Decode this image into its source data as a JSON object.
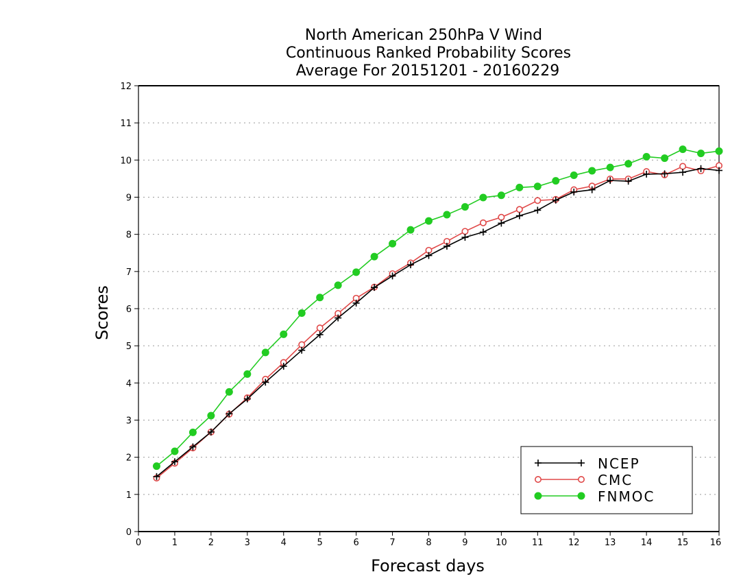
{
  "chart_data": {
    "type": "line",
    "title": [
      "North American 250hPa V Wind",
      "Continuous Ranked Probability Scores",
      "Average For 20151201 - 20160229"
    ],
    "xlabel": "Forecast days",
    "ylabel": "Scores",
    "xlim": [
      0,
      16
    ],
    "ylim": [
      0,
      12
    ],
    "xticks": [
      0,
      1,
      2,
      3,
      4,
      5,
      6,
      7,
      8,
      9,
      10,
      11,
      12,
      13,
      14,
      15,
      16
    ],
    "yticks": [
      0,
      1,
      2,
      3,
      4,
      5,
      6,
      7,
      8,
      9,
      10,
      11,
      12
    ],
    "grid": "horizontal dotted",
    "legend_position": "bottom-right",
    "x": [
      0.5,
      1.0,
      1.5,
      2.0,
      2.5,
      3.0,
      3.5,
      4.0,
      4.5,
      5.0,
      5.5,
      6.0,
      6.5,
      7.0,
      7.5,
      8.0,
      8.5,
      9.0,
      9.5,
      10.0,
      10.5,
      11.0,
      11.5,
      12.0,
      12.5,
      13.0,
      13.5,
      14.0,
      14.5,
      15.0,
      15.5,
      16.0
    ],
    "series": [
      {
        "name": "NCEP",
        "color": "#000000",
        "marker": "plus",
        "values": [
          1.48,
          1.88,
          2.28,
          2.68,
          3.17,
          3.57,
          4.02,
          4.45,
          4.88,
          5.3,
          5.75,
          6.15,
          6.57,
          6.88,
          7.18,
          7.43,
          7.68,
          7.92,
          8.06,
          8.3,
          8.5,
          8.65,
          8.92,
          9.14,
          9.2,
          9.45,
          9.43,
          9.62,
          9.63,
          9.67,
          9.77,
          9.72
        ]
      },
      {
        "name": "CMC",
        "color": "#e04848",
        "marker": "open-circle",
        "values": [
          1.44,
          1.84,
          2.25,
          2.68,
          3.16,
          3.6,
          4.1,
          4.55,
          5.03,
          5.48,
          5.87,
          6.28,
          6.58,
          6.94,
          7.23,
          7.57,
          7.81,
          8.08,
          8.31,
          8.46,
          8.67,
          8.91,
          8.94,
          9.2,
          9.3,
          9.49,
          9.49,
          9.69,
          9.6,
          9.83,
          9.71,
          9.85
        ]
      },
      {
        "name": "FNMOC",
        "color": "#22cc22",
        "marker": "filled-circle",
        "values": [
          1.76,
          2.16,
          2.67,
          3.12,
          3.76,
          4.24,
          4.82,
          5.31,
          5.88,
          6.3,
          6.63,
          6.98,
          7.4,
          7.75,
          8.12,
          8.36,
          8.53,
          8.74,
          8.99,
          9.05,
          9.26,
          9.29,
          9.44,
          9.59,
          9.71,
          9.8,
          9.9,
          10.09,
          10.05,
          10.29,
          10.18,
          10.24
        ]
      }
    ]
  }
}
